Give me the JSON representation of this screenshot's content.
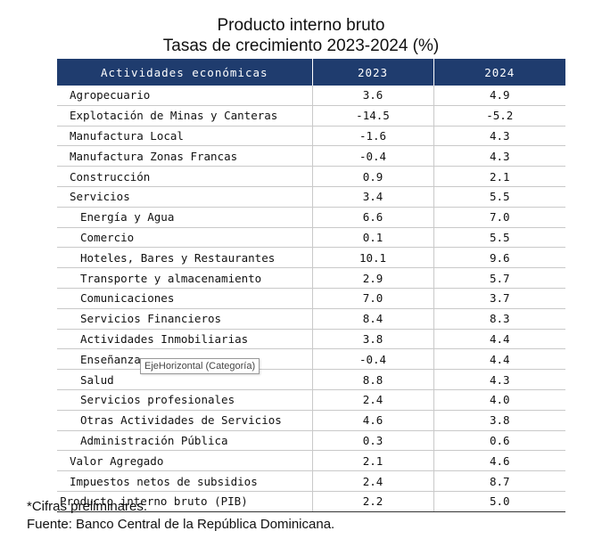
{
  "title": "Producto interno bruto",
  "subtitle": "Tasas de crecimiento 2023-2024 (%)",
  "table": {
    "headers": [
      "Actividades económicas",
      "2023",
      "2024"
    ],
    "rows": [
      {
        "label": "Agropecuario",
        "v2023": "3.6",
        "v2024": "4.9",
        "level": "main"
      },
      {
        "label": "Explotación de Minas y Canteras",
        "v2023": "-14.5",
        "v2024": "-5.2",
        "level": "main"
      },
      {
        "label": "Manufactura Local",
        "v2023": "-1.6",
        "v2024": "4.3",
        "level": "main"
      },
      {
        "label": "Manufactura Zonas Francas",
        "v2023": "-0.4",
        "v2024": "4.3",
        "level": "main"
      },
      {
        "label": "Construcción",
        "v2023": "0.9",
        "v2024": "2.1",
        "level": "main"
      },
      {
        "label": "Servicios",
        "v2023": "3.4",
        "v2024": "5.5",
        "level": "main"
      },
      {
        "label": "Energía y Agua",
        "v2023": "6.6",
        "v2024": "7.0",
        "level": "sub"
      },
      {
        "label": "Comercio",
        "v2023": "0.1",
        "v2024": "5.5",
        "level": "sub"
      },
      {
        "label": "Hoteles, Bares y Restaurantes",
        "v2023": "10.1",
        "v2024": "9.6",
        "level": "sub"
      },
      {
        "label": "Transporte y almacenamiento",
        "v2023": "2.9",
        "v2024": "5.7",
        "level": "sub"
      },
      {
        "label": "Comunicaciones",
        "v2023": "7.0",
        "v2024": "3.7",
        "level": "sub"
      },
      {
        "label": "Servicios Financieros",
        "v2023": "8.4",
        "v2024": "8.3",
        "level": "sub"
      },
      {
        "label": "Actividades Inmobiliarias",
        "v2023": "3.8",
        "v2024": "4.4",
        "level": "sub"
      },
      {
        "label": "Enseñanza",
        "v2023": "-0.4",
        "v2024": "4.4",
        "level": "sub"
      },
      {
        "label": "Salud",
        "v2023": "8.8",
        "v2024": "4.3",
        "level": "sub"
      },
      {
        "label": "Servicios profesionales",
        "v2023": "2.4",
        "v2024": "4.0",
        "level": "sub"
      },
      {
        "label": "Otras Actividades de Servicios",
        "v2023": "4.6",
        "v2024": "3.8",
        "level": "sub"
      },
      {
        "label": "Administración Pública",
        "v2023": "0.3",
        "v2024": "0.6",
        "level": "sub"
      },
      {
        "label": "Valor Agregado",
        "v2023": "2.1",
        "v2024": "4.6",
        "level": "main"
      },
      {
        "label": "Impuestos netos de subsidios",
        "v2023": "2.4",
        "v2024": "8.7",
        "level": "main"
      },
      {
        "label": "Producto interno bruto (PIB)",
        "v2023": "2.2",
        "v2024": "5.0",
        "level": "top"
      }
    ]
  },
  "tooltip": "EjeHorizontal (Categoría)",
  "footnote": "*Cifras preliminares.",
  "source": "Fuente: Banco Central de la República Dominicana.",
  "colors": {
    "header_bg": "#1f3c6e",
    "header_text": "#ffffff"
  }
}
